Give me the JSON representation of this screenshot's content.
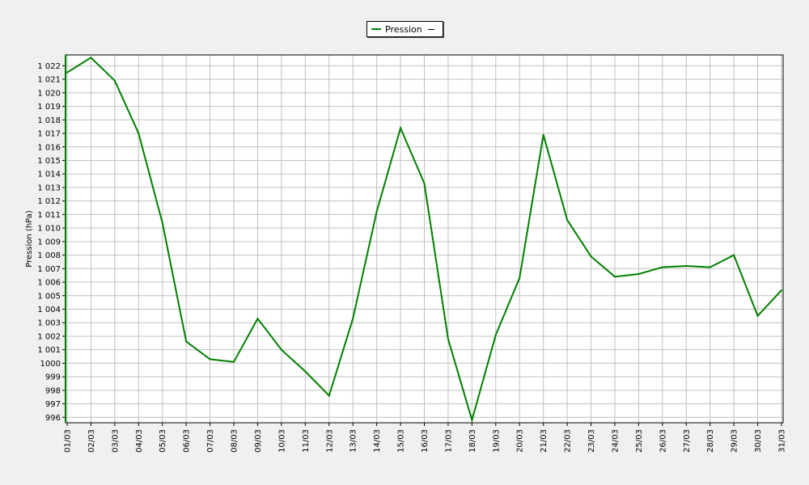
{
  "chart_data": {
    "type": "line",
    "ylabel": "Pression (hPa)",
    "xlabel": "",
    "legend": {
      "position": "top-center"
    },
    "ylim": [
      995.6,
      1022.8
    ],
    "yticks": [
      996,
      997,
      998,
      999,
      1000,
      1001,
      1002,
      1003,
      1004,
      1005,
      1006,
      1007,
      1008,
      1009,
      1010,
      1011,
      1012,
      1013,
      1014,
      1015,
      1016,
      1017,
      1018,
      1019,
      1020,
      1021,
      1022
    ],
    "ytick_labels": [
      "996",
      "997",
      "998",
      "999",
      "1000",
      "1 001",
      "1 002",
      "1 003",
      "1 004",
      "1 005",
      "1 006",
      "1 007",
      "1 008",
      "1 009",
      "1 010",
      "1 011",
      "1 012",
      "1 013",
      "1 014",
      "1 015",
      "1 016",
      "1 017",
      "1 018",
      "1 019",
      "1 020",
      "1 021",
      "1 022"
    ],
    "categories": [
      "01/03",
      "02/03",
      "03/03",
      "04/03",
      "05/03",
      "06/03",
      "07/03",
      "08/03",
      "09/03",
      "10/03",
      "11/03",
      "12/03",
      "13/03",
      "14/03",
      "15/03",
      "16/03",
      "17/03",
      "18/03",
      "19/03",
      "20/03",
      "21/03",
      "22/03",
      "23/03",
      "24/03",
      "25/03",
      "26/03",
      "27/03",
      "28/03",
      "29/03",
      "30/03",
      "31/03"
    ],
    "grid": true,
    "series": [
      {
        "name": "Pression",
        "color": "#007f00",
        "values": [
          1021.5,
          1022.6,
          1020.9,
          1017.0,
          1010.4,
          1001.6,
          1000.3,
          1000.1,
          1003.3,
          1001.0,
          999.4,
          997.6,
          1003.3,
          1011.2,
          1017.4,
          1013.3,
          1001.8,
          995.8,
          1002.1,
          1006.3,
          1016.9,
          1010.6,
          1007.9,
          1006.4,
          1006.6,
          1007.1,
          1007.2,
          1007.1,
          1008.0,
          1003.5,
          1005.4
        ]
      }
    ]
  }
}
